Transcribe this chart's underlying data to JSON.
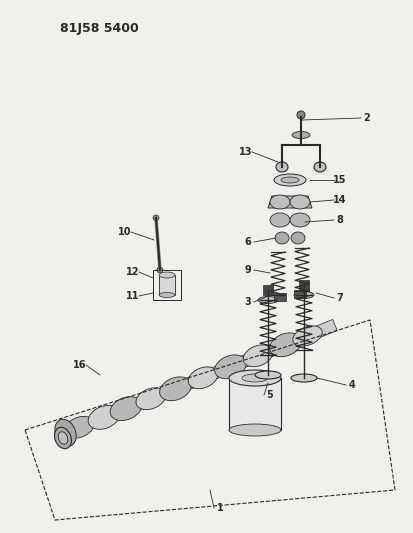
{
  "bg_color": "#f0f0ec",
  "line_color": "#2a2a2a",
  "title_text": "81J58 5400",
  "title_fontsize": 9,
  "label_fontsize": 7,
  "label_fontweight": "bold"
}
